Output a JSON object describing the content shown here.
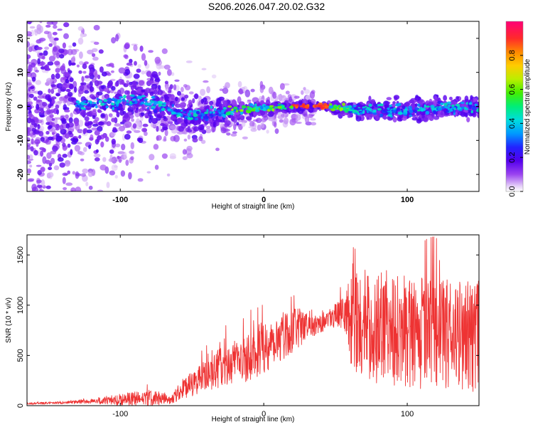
{
  "title": "S206.2026.047.20.02.G32",
  "chart_data": [
    {
      "type": "heatmap",
      "name": "spectrogram",
      "xlabel": "Height of straight line (km)",
      "ylabel": "Frequency (Hz)",
      "xlim": [
        -165,
        150
      ],
      "ylim": [
        -25,
        25
      ],
      "xticks": [
        "-100",
        "0",
        "100"
      ],
      "xtick_values": [
        -100,
        0,
        100
      ],
      "yticks": [
        "-20",
        "-10",
        "0",
        "10",
        "20"
      ],
      "ytick_values": [
        -20,
        -10,
        0,
        10,
        20
      ],
      "ridge": [
        {
          "x": -165,
          "y": 0,
          "spread": 18
        },
        {
          "x": -120,
          "y": 0.5,
          "spread": 12
        },
        {
          "x": -90,
          "y": 2,
          "spread": 9
        },
        {
          "x": -70,
          "y": 0,
          "spread": 6
        },
        {
          "x": -50,
          "y": -3,
          "spread": 4
        },
        {
          "x": -30,
          "y": -2,
          "spread": 3
        },
        {
          "x": -15,
          "y": -1,
          "spread": 2
        },
        {
          "x": 0,
          "y": -0.5,
          "spread": 1.5
        },
        {
          "x": 20,
          "y": 0,
          "spread": 1
        },
        {
          "x": 45,
          "y": 0,
          "spread": 1
        },
        {
          "x": 60,
          "y": -1,
          "spread": 2
        },
        {
          "x": 100,
          "y": -1,
          "spread": 2.5
        },
        {
          "x": 150,
          "y": 0,
          "spread": 2.5
        }
      ],
      "colorbar": {
        "label": "Normalized spectral amplitude",
        "ticks": [
          "0.0",
          "0.2",
          "0.4",
          "0.6",
          "0.8"
        ],
        "tick_values": [
          0.0,
          0.2,
          0.4,
          0.6,
          0.8
        ],
        "range": [
          0,
          1
        ]
      }
    },
    {
      "type": "line",
      "name": "snr",
      "xlabel": "Height of straight line (km)",
      "ylabel": "SNR (10 * v/v)",
      "xlim": [
        -165,
        150
      ],
      "ylim": [
        0,
        1700
      ],
      "xticks": [
        "-100",
        "0",
        "100"
      ],
      "xtick_values": [
        -100,
        0,
        100
      ],
      "yticks": [
        "0",
        "500",
        "1000",
        "1500"
      ],
      "ytick_values": [
        0,
        500,
        1000,
        1500
      ],
      "color": "#ee3333",
      "envelope": {
        "x": [
          -165,
          -140,
          -120,
          -100,
          -80,
          -65,
          -60,
          -50,
          -40,
          -30,
          -20,
          -10,
          0,
          10,
          20,
          30,
          40,
          45,
          50,
          55,
          58,
          60,
          70,
          80,
          90,
          100,
          110,
          120,
          130,
          140,
          150
        ],
        "mid": [
          20,
          30,
          45,
          60,
          70,
          60,
          120,
          220,
          300,
          380,
          420,
          500,
          580,
          680,
          750,
          800,
          840,
          870,
          900,
          920,
          940,
          850,
          800,
          780,
          760,
          740,
          720,
          700,
          710,
          700,
          680
        ],
        "amp": [
          10,
          12,
          25,
          60,
          90,
          40,
          80,
          130,
          160,
          200,
          230,
          250,
          270,
          260,
          220,
          160,
          110,
          100,
          120,
          150,
          250,
          450,
          550,
          560,
          560,
          560,
          560,
          560,
          560,
          560,
          560
        ]
      }
    }
  ]
}
